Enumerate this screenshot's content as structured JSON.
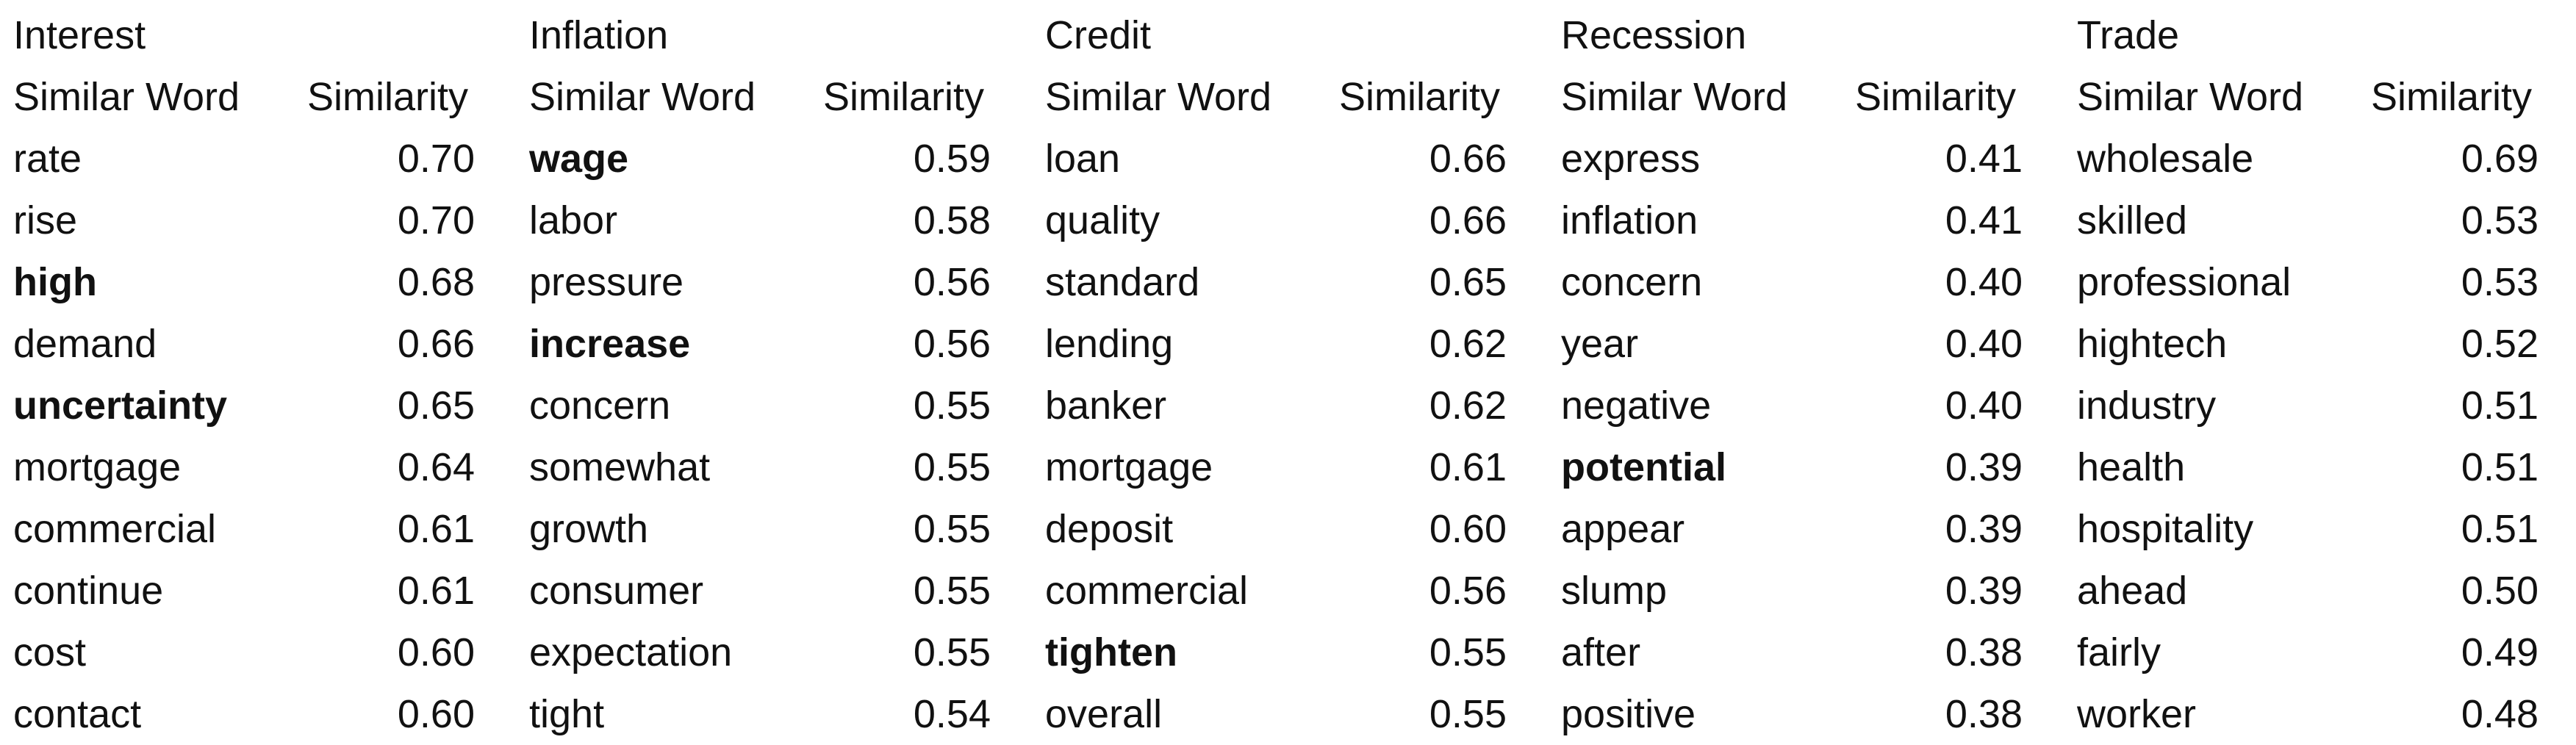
{
  "headers": {
    "word": "Similar Word",
    "similarity": "Similarity"
  },
  "groups": [
    {
      "topic": "Interest",
      "rows": [
        {
          "word": "rate",
          "similarity": "0.70",
          "bold": false
        },
        {
          "word": "rise",
          "similarity": "0.70",
          "bold": false
        },
        {
          "word": "high",
          "similarity": "0.68",
          "bold": true
        },
        {
          "word": "demand",
          "similarity": "0.66",
          "bold": false
        },
        {
          "word": "uncertainty",
          "similarity": "0.65",
          "bold": true
        },
        {
          "word": "mortgage",
          "similarity": "0.64",
          "bold": false
        },
        {
          "word": "commercial",
          "similarity": "0.61",
          "bold": false
        },
        {
          "word": "continue",
          "similarity": "0.61",
          "bold": false
        },
        {
          "word": "cost",
          "similarity": "0.60",
          "bold": false
        },
        {
          "word": "contact",
          "similarity": "0.60",
          "bold": false
        }
      ]
    },
    {
      "topic": "Inflation",
      "rows": [
        {
          "word": "wage",
          "similarity": "0.59",
          "bold": true
        },
        {
          "word": "labor",
          "similarity": "0.58",
          "bold": false
        },
        {
          "word": "pressure",
          "similarity": "0.56",
          "bold": false
        },
        {
          "word": "increase",
          "similarity": "0.56",
          "bold": true
        },
        {
          "word": "concern",
          "similarity": "0.55",
          "bold": false
        },
        {
          "word": "somewhat",
          "similarity": "0.55",
          "bold": false
        },
        {
          "word": "growth",
          "similarity": "0.55",
          "bold": false
        },
        {
          "word": "consumer",
          "similarity": "0.55",
          "bold": false
        },
        {
          "word": "expectation",
          "similarity": "0.55",
          "bold": false
        },
        {
          "word": "tight",
          "similarity": "0.54",
          "bold": false
        }
      ]
    },
    {
      "topic": "Credit",
      "rows": [
        {
          "word": "loan",
          "similarity": "0.66",
          "bold": false
        },
        {
          "word": "quality",
          "similarity": "0.66",
          "bold": false
        },
        {
          "word": "standard",
          "similarity": "0.65",
          "bold": false
        },
        {
          "word": "lending",
          "similarity": "0.62",
          "bold": false
        },
        {
          "word": "banker",
          "similarity": "0.62",
          "bold": false
        },
        {
          "word": "mortgage",
          "similarity": "0.61",
          "bold": false
        },
        {
          "word": "deposit",
          "similarity": "0.60",
          "bold": false
        },
        {
          "word": "commercial",
          "similarity": "0.56",
          "bold": false
        },
        {
          "word": "tighten",
          "similarity": "0.55",
          "bold": true
        },
        {
          "word": "overall",
          "similarity": "0.55",
          "bold": false
        }
      ]
    },
    {
      "topic": "Recession",
      "rows": [
        {
          "word": "express",
          "similarity": "0.41",
          "bold": false
        },
        {
          "word": "inflation",
          "similarity": "0.41",
          "bold": false
        },
        {
          "word": "concern",
          "similarity": "0.40",
          "bold": false
        },
        {
          "word": "year",
          "similarity": "0.40",
          "bold": false
        },
        {
          "word": "negative",
          "similarity": "0.40",
          "bold": false
        },
        {
          "word": "potential",
          "similarity": "0.39",
          "bold": true
        },
        {
          "word": "appear",
          "similarity": "0.39",
          "bold": false
        },
        {
          "word": "slump",
          "similarity": "0.39",
          "bold": false
        },
        {
          "word": "after",
          "similarity": "0.38",
          "bold": false
        },
        {
          "word": "positive",
          "similarity": "0.38",
          "bold": false
        }
      ]
    },
    {
      "topic": "Trade",
      "rows": [
        {
          "word": "wholesale",
          "similarity": "0.69",
          "bold": false
        },
        {
          "word": "skilled",
          "similarity": "0.53",
          "bold": false
        },
        {
          "word": "professional",
          "similarity": "0.53",
          "bold": false
        },
        {
          "word": "hightech",
          "similarity": "0.52",
          "bold": false
        },
        {
          "word": "industry",
          "similarity": "0.51",
          "bold": false
        },
        {
          "word": "health",
          "similarity": "0.51",
          "bold": false
        },
        {
          "word": "hospitality",
          "similarity": "0.51",
          "bold": false
        },
        {
          "word": "ahead",
          "similarity": "0.50",
          "bold": false
        },
        {
          "word": "fairly",
          "similarity": "0.49",
          "bold": false
        },
        {
          "word": "worker",
          "similarity": "0.48",
          "bold": false
        }
      ]
    }
  ]
}
